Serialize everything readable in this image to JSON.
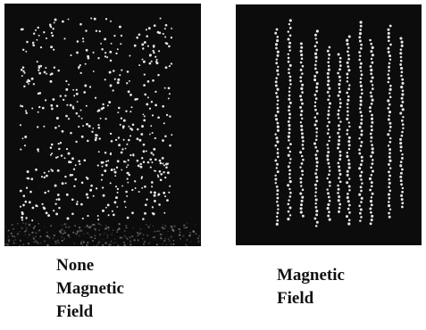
{
  "figure": {
    "left_panel": {
      "caption_lines": [
        "None",
        "Magnetic",
        "Field"
      ]
    },
    "right_panel": {
      "caption_lines": [
        "Magnetic",
        "Field"
      ]
    },
    "colors": {
      "background": "#0c0c0c",
      "particles": "#e8e8e8"
    }
  }
}
